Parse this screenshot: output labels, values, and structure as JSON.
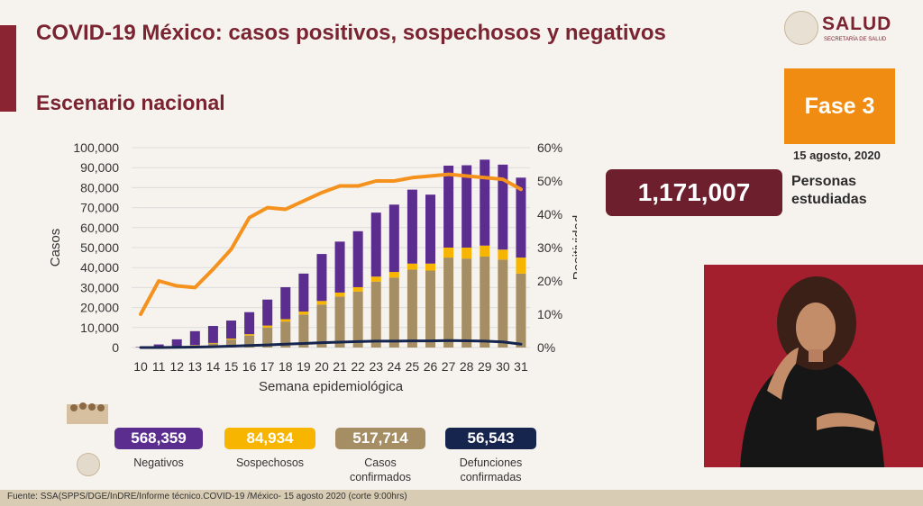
{
  "header": {
    "title": "COVID-19 México: casos positivos, sospechosos y negativos",
    "subtitle": "Escenario nacional"
  },
  "logo": {
    "name": "SALUD",
    "sub": "SECRETARÍA DE SALUD"
  },
  "phase": {
    "label": "Fase 3",
    "date": "15 agosto, 2020"
  },
  "studied": {
    "value": "1,171,007",
    "label": "Personas estudiadas"
  },
  "colors": {
    "negatives": "#5b2d8e",
    "suspects": "#f7b500",
    "confirmed": "#a58d64",
    "deaths": "#15254e",
    "positivity": "#f5921e",
    "brand": "#7a2431"
  },
  "kpis": [
    {
      "value": "568,359",
      "label": "Negativos",
      "color": "#5b2d8e"
    },
    {
      "value": "84,934",
      "label": "Sospechosos",
      "color": "#f7b500"
    },
    {
      "value": "517,714",
      "label": "Casos confirmados",
      "color": "#a58d64"
    },
    {
      "value": "56,543",
      "label": "Defunciones confirmadas",
      "color": "#15254e"
    }
  ],
  "footer": {
    "source": "Fuente: SSA(SPPS/DGE/InDRE/Informe técnico.COVID-19 /México- 15 agosto 2020 (corte 9:00hrs)"
  },
  "chart_data": {
    "type": "bar",
    "stacked": true,
    "xlabel": "Semana epidemiológica",
    "ylabel": "Casos",
    "y2label": "Positividad",
    "ylim": [
      0,
      100000
    ],
    "y2lim": [
      0,
      60
    ],
    "yticks": [
      "0",
      "10,000",
      "20,000",
      "30,000",
      "40,000",
      "50,000",
      "60,000",
      "70,000",
      "80,000",
      "90,000",
      "100,000"
    ],
    "y2ticks": [
      "0%",
      "10%",
      "20%",
      "30%",
      "40%",
      "50%",
      "60%"
    ],
    "categories": [
      "10",
      "11",
      "12",
      "13",
      "14",
      "15",
      "16",
      "17",
      "18",
      "19",
      "20",
      "21",
      "22",
      "23",
      "24",
      "25",
      "26",
      "27",
      "28",
      "29",
      "30",
      "31"
    ],
    "series": [
      {
        "key": "confirmed",
        "type": "bar",
        "values": [
          100,
          300,
          500,
          1000,
          2000,
          4000,
          6000,
          10000,
          13000,
          16500,
          21500,
          25500,
          28000,
          33000,
          35000,
          39000,
          38500,
          45000,
          44500,
          45500,
          44000,
          37000
        ]
      },
      {
        "key": "suspects",
        "type": "bar",
        "values": [
          20,
          50,
          100,
          200,
          300,
          500,
          700,
          1000,
          1200,
          1500,
          1800,
          2000,
          2200,
          2500,
          2800,
          3000,
          3500,
          5000,
          5500,
          5500,
          5000,
          8000
        ]
      },
      {
        "key": "negatives",
        "type": "bar",
        "values": [
          200,
          1200,
          3500,
          7000,
          8500,
          9000,
          11000,
          13000,
          16000,
          19000,
          23500,
          25500,
          28000,
          32000,
          33700,
          37000,
          34500,
          41000,
          41200,
          43000,
          42500,
          40000
        ]
      },
      {
        "key": "deaths",
        "type": "line",
        "values": [
          0,
          20,
          100,
          200,
          400,
          700,
          1000,
          1300,
          1700,
          2000,
          2400,
          2700,
          3000,
          3200,
          3200,
          3300,
          3300,
          3500,
          3400,
          3200,
          2800,
          1700
        ]
      },
      {
        "key": "positivity",
        "type": "line",
        "axis": "y2",
        "values": [
          10,
          20,
          18.5,
          18,
          23.5,
          29.5,
          39,
          42,
          41.5,
          44,
          46.5,
          48.5,
          48.5,
          50,
          50,
          51,
          51.5,
          52,
          51.5,
          51,
          50.5,
          47.5
        ]
      }
    ]
  }
}
